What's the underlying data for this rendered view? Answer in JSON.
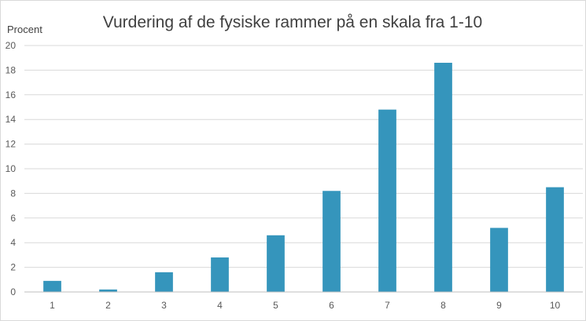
{
  "chart_data": {
    "type": "bar",
    "title": "Vurdering af de fysiske rammer på en skala fra 1-10",
    "xlabel": "",
    "ylabel": "Procent",
    "categories": [
      "1",
      "2",
      "3",
      "4",
      "5",
      "6",
      "7",
      "8",
      "9",
      "10"
    ],
    "values": [
      0.9,
      0.2,
      1.6,
      2.8,
      4.6,
      8.2,
      14.8,
      18.6,
      5.2,
      8.5
    ],
    "ylim": [
      0,
      20
    ],
    "yticks": [
      0,
      2,
      4,
      6,
      8,
      10,
      12,
      14,
      16,
      18,
      20
    ],
    "grid": true,
    "legend": "none",
    "bar_color": "#3595bc",
    "grid_color": "#d9d9d9",
    "axis_color": "#bfbfbf"
  }
}
